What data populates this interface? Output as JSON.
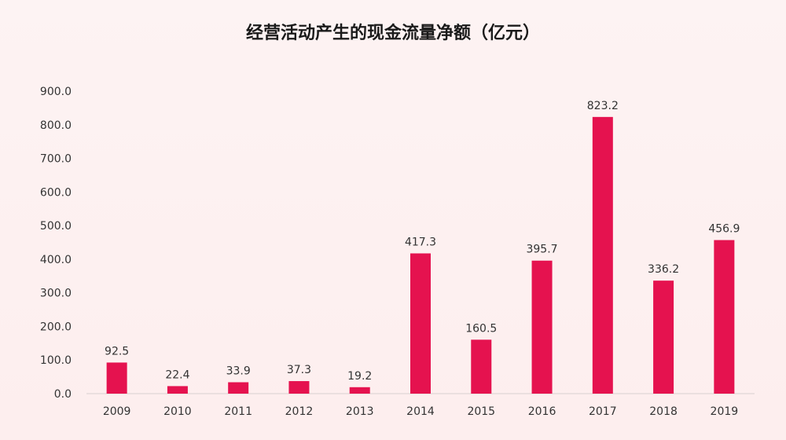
{
  "chart_data": {
    "type": "bar",
    "title": "经营活动产生的现金流量净额（亿元）",
    "xlabel": "",
    "ylabel": "",
    "categories": [
      "2009",
      "2010",
      "2011",
      "2012",
      "2013",
      "2014",
      "2015",
      "2016",
      "2017",
      "2018",
      "2019"
    ],
    "values": [
      92.5,
      22.4,
      33.9,
      37.3,
      19.2,
      417.3,
      160.5,
      395.7,
      823.2,
      336.2,
      456.9
    ],
    "data_labels": [
      "92.5",
      "22.4",
      "33.9",
      "37.3",
      "19.2",
      "417.3",
      "160.5",
      "395.7",
      "823.2",
      "336.2",
      "456.9"
    ],
    "ylim": [
      0,
      900
    ],
    "yticks": [
      "0.0",
      "100.0",
      "200.0",
      "300.0",
      "400.0",
      "500.0",
      "600.0",
      "700.0",
      "800.0",
      "900.0"
    ],
    "grid": false,
    "legend": "none",
    "bar_color": "#e5124f"
  }
}
